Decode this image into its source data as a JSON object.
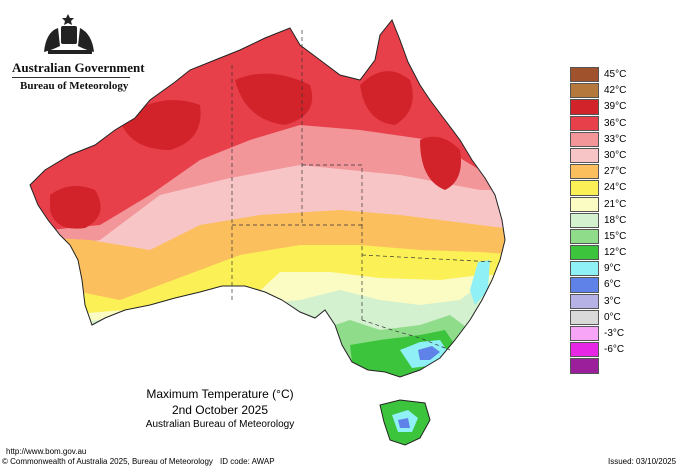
{
  "header": {
    "government": "Australian Government",
    "bureau": "Bureau of Meteorology"
  },
  "map": {
    "title": "Maximum Temperature (°C)",
    "date": "2nd October 2025",
    "source": "Australian Bureau of Meteorology"
  },
  "legend": [
    {
      "label": "45°C",
      "color": "#a0522d"
    },
    {
      "label": "42°C",
      "color": "#b5783c"
    },
    {
      "label": "39°C",
      "color": "#d2232a"
    },
    {
      "label": "36°C",
      "color": "#e8404a"
    },
    {
      "label": "33°C",
      "color": "#f2969a"
    },
    {
      "label": "30°C",
      "color": "#f8c5c7"
    },
    {
      "label": "27°C",
      "color": "#fbbf5e"
    },
    {
      "label": "24°C",
      "color": "#fbf055"
    },
    {
      "label": "21°C",
      "color": "#fbfbc4"
    },
    {
      "label": "18°C",
      "color": "#d3f0cf"
    },
    {
      "label": "15°C",
      "color": "#8fdc8a"
    },
    {
      "label": "12°C",
      "color": "#3cc43c"
    },
    {
      "label": "9°C",
      "color": "#8ff0f5"
    },
    {
      "label": "6°C",
      "color": "#5f82e8"
    },
    {
      "label": "3°C",
      "color": "#b7b2e6"
    },
    {
      "label": "0°C",
      "color": "#d9d9d9"
    },
    {
      "label": "-3°C",
      "color": "#f7a5f7"
    },
    {
      "label": "-6°C",
      "color": "#e628e6"
    },
    {
      "label": "",
      "color": "#9b1e9b"
    }
  ],
  "footer": {
    "url": "http://www.bom.gov.au",
    "copyright": "© Commonwealth of Australia 2025, Bureau of Meteorology",
    "id_code": "ID code: AWAP",
    "issued": "Issued: 03/10/2025"
  }
}
